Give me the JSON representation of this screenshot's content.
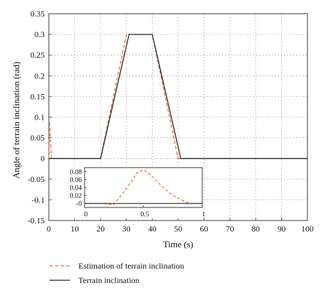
{
  "colors": {
    "estimate": "#e8693a",
    "terrain": "#222222",
    "grid": "#9a9a9a",
    "axis": "#333333"
  },
  "chart_data": [
    {
      "type": "line",
      "title": "",
      "xlabel": "Time (s)",
      "ylabel": "Angle of terrain inclination (rad)",
      "xlim": [
        0,
        100
      ],
      "ylim": [
        -0.15,
        0.35
      ],
      "xticks": [
        "0",
        "10",
        "20",
        "30",
        "40",
        "50",
        "60",
        "70",
        "80",
        "90",
        "100"
      ],
      "yticks": [
        "-0.15",
        "-0.1",
        "-0.05",
        "0",
        "0.05",
        "0.1",
        "0.15",
        "0.2",
        "0.25",
        "0.3",
        "0.35"
      ],
      "grid": true,
      "legend_position": "below-plot",
      "series": [
        {
          "name": "Estimation of terrain inclination",
          "style": "dashed",
          "color": "#e8693a",
          "x": [
            0,
            0.2,
            0.5,
            1.0,
            1.5,
            20,
            30,
            40,
            50,
            52,
            100
          ],
          "y": [
            0,
            0.09,
            0.06,
            0.0,
            0.0,
            0.0,
            0.3,
            0.3,
            0.0,
            0.0,
            0.0
          ]
        },
        {
          "name": "Terrain inclination",
          "style": "solid",
          "color": "#222222",
          "x": [
            0,
            20,
            31,
            40,
            51,
            100
          ],
          "y": [
            0,
            0,
            0.3,
            0.3,
            0,
            0
          ]
        }
      ]
    },
    {
      "type": "line",
      "title": "",
      "xlabel": "",
      "ylabel": "",
      "xlim": [
        0,
        1
      ],
      "ylim": [
        -0.01,
        0.09
      ],
      "xticks": [
        "0",
        "0.5",
        "1"
      ],
      "yticks": [
        "-0",
        "0.02",
        "0.04",
        "0.06",
        "0.08"
      ],
      "grid": false,
      "series": [
        {
          "name": "Estimation of terrain inclination",
          "style": "dashed",
          "color": "#e8693a",
          "x": [
            0,
            0.15,
            0.25,
            0.35,
            0.45,
            0.5,
            0.55,
            0.65,
            0.75,
            0.85,
            0.9,
            1.0
          ],
          "y": [
            0,
            0,
            -0.003,
            0.035,
            0.078,
            0.085,
            0.075,
            0.045,
            0.02,
            0.005,
            0,
            0
          ]
        },
        {
          "name": "Terrain inclination",
          "style": "solid",
          "color": "#222222",
          "x": [
            0,
            1
          ],
          "y": [
            0,
            0
          ]
        }
      ]
    }
  ]
}
